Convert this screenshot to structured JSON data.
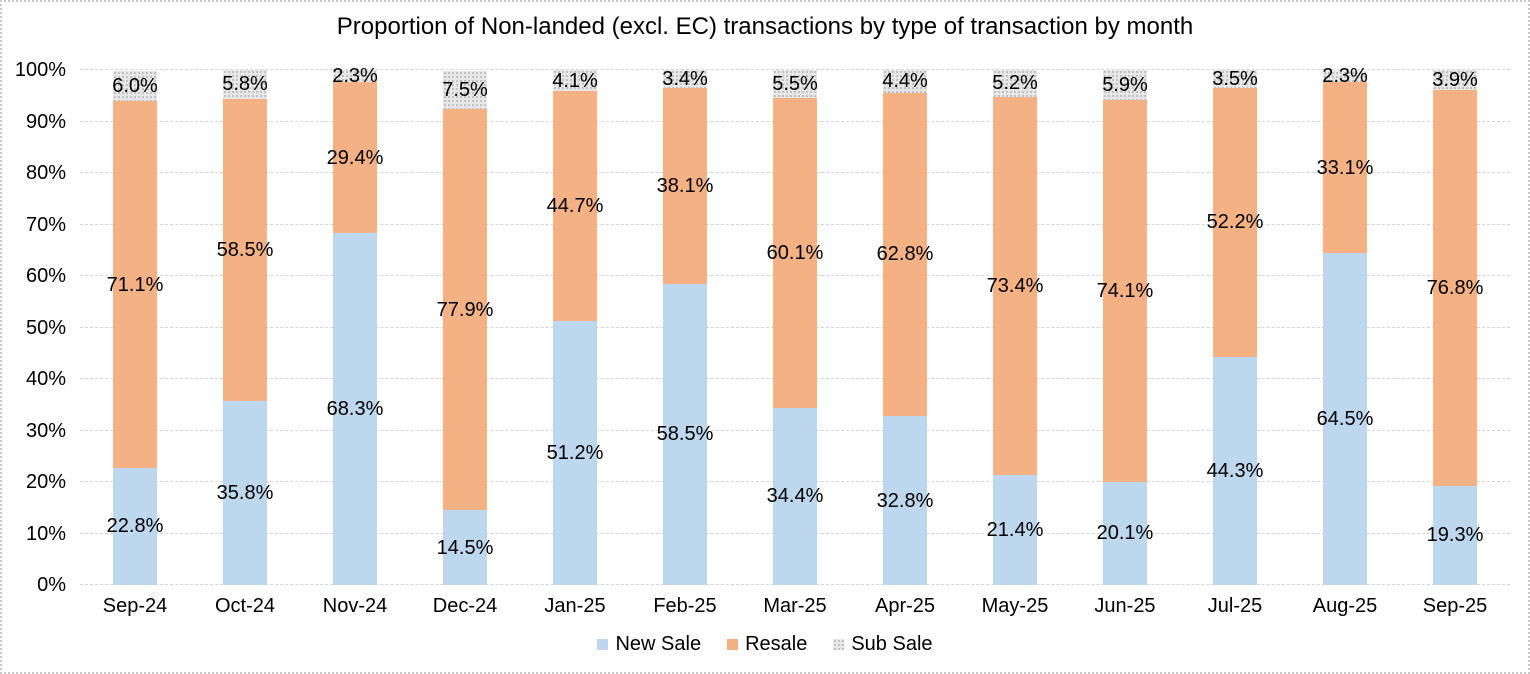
{
  "chart_data": {
    "type": "bar",
    "stacked": true,
    "orientation": "vertical",
    "title": "Proportion of Non-landed (excl. EC) transactions by type of transaction by month",
    "categories": [
      "Sep-24",
      "Oct-24",
      "Nov-24",
      "Dec-24",
      "Jan-25",
      "Feb-25",
      "Mar-25",
      "Apr-25",
      "May-25",
      "Jun-25",
      "Jul-25",
      "Aug-25",
      "Sep-25"
    ],
    "series": [
      {
        "name": "New Sale",
        "color": "#BDD7EE",
        "pattern": "solid",
        "values": [
          22.8,
          35.8,
          68.3,
          14.5,
          51.2,
          58.5,
          34.4,
          32.8,
          21.4,
          20.1,
          44.3,
          64.5,
          19.3
        ]
      },
      {
        "name": "Resale",
        "color": "#F4B183",
        "pattern": "solid",
        "values": [
          71.1,
          58.5,
          29.4,
          77.9,
          44.7,
          38.1,
          60.1,
          62.8,
          73.4,
          74.1,
          52.2,
          33.1,
          76.8
        ]
      },
      {
        "name": "Sub Sale",
        "color": "#E7E7E7",
        "pattern": "dots",
        "pattern_dot_color": "#BDBDBD",
        "values": [
          6.0,
          5.8,
          2.3,
          7.5,
          4.1,
          3.4,
          5.5,
          4.4,
          5.2,
          5.9,
          3.5,
          2.3,
          3.9
        ]
      }
    ],
    "y_axis": {
      "min": 0,
      "max": 100,
      "tick_labels": [
        "0%",
        "10%",
        "20%",
        "30%",
        "40%",
        "50%",
        "60%",
        "70%",
        "80%",
        "90%",
        "100%"
      ]
    },
    "data_label_suffix": "%",
    "data_label_decimals": 1,
    "grid": true,
    "legend_position": "bottom",
    "colors": {
      "gridline": "#d6d6d6",
      "text": "#000000",
      "chart_border": "#c9c9c9"
    }
  }
}
